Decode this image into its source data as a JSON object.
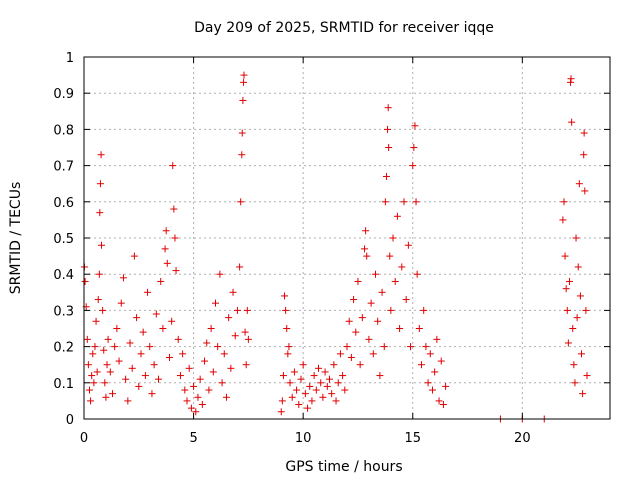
{
  "chart_data": {
    "type": "scatter",
    "title": "Day 209 of 2025, SRMTID for receiver iqqe",
    "xlabel": "GPS time / hours",
    "ylabel": "SRMTID / TECUs",
    "xlim": [
      0,
      24
    ],
    "ylim": [
      0,
      1
    ],
    "xticks": [
      0,
      5,
      10,
      15,
      20
    ],
    "yticks": [
      0,
      0.1,
      0.2,
      0.3,
      0.4,
      0.5,
      0.6,
      0.7,
      0.8,
      0.9,
      1
    ],
    "grid": true,
    "marker": "+",
    "series_color": "#e00000",
    "series": [
      {
        "name": "SRMTID",
        "points": [
          [
            0.02,
            0.42
          ],
          [
            0.05,
            0.38
          ],
          [
            0.1,
            0.31
          ],
          [
            0.15,
            0.22
          ],
          [
            0.2,
            0.15
          ],
          [
            0.25,
            0.08
          ],
          [
            0.3,
            0.05
          ],
          [
            0.35,
            0.12
          ],
          [
            0.4,
            0.18
          ],
          [
            0.45,
            0.1
          ],
          [
            0.5,
            0.2
          ],
          [
            0.55,
            0.27
          ],
          [
            0.6,
            0.13
          ],
          [
            0.65,
            0.33
          ],
          [
            0.7,
            0.4
          ],
          [
            0.72,
            0.57
          ],
          [
            0.75,
            0.65
          ],
          [
            0.78,
            0.73
          ],
          [
            0.8,
            0.48
          ],
          [
            0.85,
            0.3
          ],
          [
            0.9,
            0.19
          ],
          [
            0.95,
            0.1
          ],
          [
            1.0,
            0.06
          ],
          [
            1.05,
            0.15
          ],
          [
            1.1,
            0.22
          ],
          [
            1.2,
            0.13
          ],
          [
            1.3,
            0.07
          ],
          [
            1.4,
            0.2
          ],
          [
            1.5,
            0.25
          ],
          [
            1.6,
            0.16
          ],
          [
            1.7,
            0.32
          ],
          [
            1.8,
            0.39
          ],
          [
            1.9,
            0.11
          ],
          [
            2.0,
            0.05
          ],
          [
            2.1,
            0.21
          ],
          [
            2.2,
            0.14
          ],
          [
            2.3,
            0.45
          ],
          [
            2.4,
            0.28
          ],
          [
            2.5,
            0.09
          ],
          [
            2.6,
            0.18
          ],
          [
            2.7,
            0.24
          ],
          [
            2.8,
            0.12
          ],
          [
            2.9,
            0.35
          ],
          [
            3.0,
            0.2
          ],
          [
            3.1,
            0.07
          ],
          [
            3.2,
            0.15
          ],
          [
            3.3,
            0.29
          ],
          [
            3.4,
            0.11
          ],
          [
            3.5,
            0.38
          ],
          [
            3.6,
            0.25
          ],
          [
            3.7,
            0.47
          ],
          [
            3.75,
            0.52
          ],
          [
            3.8,
            0.43
          ],
          [
            3.9,
            0.17
          ],
          [
            4.0,
            0.27
          ],
          [
            4.05,
            0.7
          ],
          [
            4.1,
            0.58
          ],
          [
            4.15,
            0.5
          ],
          [
            4.2,
            0.41
          ],
          [
            4.3,
            0.22
          ],
          [
            4.4,
            0.12
          ],
          [
            4.5,
            0.18
          ],
          [
            4.6,
            0.08
          ],
          [
            4.7,
            0.05
          ],
          [
            4.8,
            0.14
          ],
          [
            4.9,
            0.03
          ],
          [
            5.0,
            0.09
          ],
          [
            5.1,
            0.02
          ],
          [
            5.2,
            0.06
          ],
          [
            5.3,
            0.11
          ],
          [
            5.4,
            0.04
          ],
          [
            5.5,
            0.16
          ],
          [
            5.6,
            0.21
          ],
          [
            5.7,
            0.08
          ],
          [
            5.8,
            0.25
          ],
          [
            5.9,
            0.13
          ],
          [
            6.0,
            0.32
          ],
          [
            6.1,
            0.2
          ],
          [
            6.2,
            0.4
          ],
          [
            6.3,
            0.1
          ],
          [
            6.4,
            0.18
          ],
          [
            6.5,
            0.06
          ],
          [
            6.6,
            0.28
          ],
          [
            6.7,
            0.14
          ],
          [
            6.8,
            0.35
          ],
          [
            6.9,
            0.23
          ],
          [
            7.0,
            0.3
          ],
          [
            7.1,
            0.42
          ],
          [
            7.15,
            0.6
          ],
          [
            7.2,
            0.73
          ],
          [
            7.22,
            0.79
          ],
          [
            7.25,
            0.88
          ],
          [
            7.28,
            0.93
          ],
          [
            7.3,
            0.95
          ],
          [
            7.35,
            0.24
          ],
          [
            7.4,
            0.15
          ],
          [
            7.45,
            0.3
          ],
          [
            7.5,
            0.22
          ],
          [
            9.0,
            0.02
          ],
          [
            9.05,
            0.05
          ],
          [
            9.1,
            0.12
          ],
          [
            9.15,
            0.34
          ],
          [
            9.2,
            0.3
          ],
          [
            9.25,
            0.25
          ],
          [
            9.3,
            0.18
          ],
          [
            9.35,
            0.2
          ],
          [
            9.4,
            0.1
          ],
          [
            9.5,
            0.06
          ],
          [
            9.6,
            0.13
          ],
          [
            9.7,
            0.08
          ],
          [
            9.8,
            0.04
          ],
          [
            9.9,
            0.11
          ],
          [
            10.0,
            0.15
          ],
          [
            10.1,
            0.07
          ],
          [
            10.2,
            0.03
          ],
          [
            10.3,
            0.09
          ],
          [
            10.4,
            0.05
          ],
          [
            10.5,
            0.12
          ],
          [
            10.6,
            0.08
          ],
          [
            10.7,
            0.14
          ],
          [
            10.8,
            0.1
          ],
          [
            10.9,
            0.06
          ],
          [
            11.0,
            0.13
          ],
          [
            11.1,
            0.09
          ],
          [
            11.2,
            0.11
          ],
          [
            11.3,
            0.07
          ],
          [
            11.4,
            0.15
          ],
          [
            11.5,
            0.05
          ],
          [
            11.6,
            0.1
          ],
          [
            11.7,
            0.18
          ],
          [
            11.8,
            0.12
          ],
          [
            11.9,
            0.08
          ],
          [
            12.0,
            0.2
          ],
          [
            12.1,
            0.27
          ],
          [
            12.2,
            0.17
          ],
          [
            12.3,
            0.33
          ],
          [
            12.4,
            0.24
          ],
          [
            12.5,
            0.38
          ],
          [
            12.6,
            0.15
          ],
          [
            12.7,
            0.28
          ],
          [
            12.8,
            0.47
          ],
          [
            12.85,
            0.52
          ],
          [
            12.9,
            0.45
          ],
          [
            13.0,
            0.22
          ],
          [
            13.1,
            0.32
          ],
          [
            13.2,
            0.18
          ],
          [
            13.3,
            0.4
          ],
          [
            13.4,
            0.27
          ],
          [
            13.5,
            0.12
          ],
          [
            13.6,
            0.35
          ],
          [
            13.7,
            0.2
          ],
          [
            13.75,
            0.6
          ],
          [
            13.8,
            0.67
          ],
          [
            13.85,
            0.8
          ],
          [
            13.88,
            0.86
          ],
          [
            13.9,
            0.75
          ],
          [
            13.95,
            0.45
          ],
          [
            14.0,
            0.3
          ],
          [
            14.1,
            0.5
          ],
          [
            14.2,
            0.38
          ],
          [
            14.3,
            0.56
          ],
          [
            14.4,
            0.25
          ],
          [
            14.5,
            0.42
          ],
          [
            14.6,
            0.6
          ],
          [
            14.7,
            0.33
          ],
          [
            14.8,
            0.48
          ],
          [
            14.9,
            0.2
          ],
          [
            15.0,
            0.7
          ],
          [
            15.05,
            0.75
          ],
          [
            15.1,
            0.81
          ],
          [
            15.15,
            0.6
          ],
          [
            15.2,
            0.4
          ],
          [
            15.3,
            0.25
          ],
          [
            15.4,
            0.15
          ],
          [
            15.5,
            0.3
          ],
          [
            15.6,
            0.2
          ],
          [
            15.7,
            0.1
          ],
          [
            15.8,
            0.18
          ],
          [
            15.9,
            0.08
          ],
          [
            16.0,
            0.13
          ],
          [
            16.1,
            0.22
          ],
          [
            16.2,
            0.05
          ],
          [
            16.3,
            0.16
          ],
          [
            16.4,
            0.04
          ],
          [
            16.5,
            0.09
          ],
          [
            19.0,
            0.0
          ],
          [
            20.0,
            0.0
          ],
          [
            21.0,
            0.0
          ],
          [
            21.85,
            0.55
          ],
          [
            21.9,
            0.6
          ],
          [
            21.95,
            0.45
          ],
          [
            22.0,
            0.36
          ],
          [
            22.05,
            0.3
          ],
          [
            22.1,
            0.21
          ],
          [
            22.15,
            0.38
          ],
          [
            22.2,
            0.93
          ],
          [
            22.22,
            0.94
          ],
          [
            22.25,
            0.82
          ],
          [
            22.3,
            0.25
          ],
          [
            22.35,
            0.15
          ],
          [
            22.4,
            0.1
          ],
          [
            22.45,
            0.5
          ],
          [
            22.5,
            0.28
          ],
          [
            22.55,
            0.42
          ],
          [
            22.6,
            0.65
          ],
          [
            22.65,
            0.34
          ],
          [
            22.7,
            0.18
          ],
          [
            22.75,
            0.07
          ],
          [
            22.8,
            0.73
          ],
          [
            22.82,
            0.79
          ],
          [
            22.85,
            0.63
          ],
          [
            22.9,
            0.3
          ],
          [
            22.95,
            0.12
          ]
        ]
      }
    ]
  }
}
